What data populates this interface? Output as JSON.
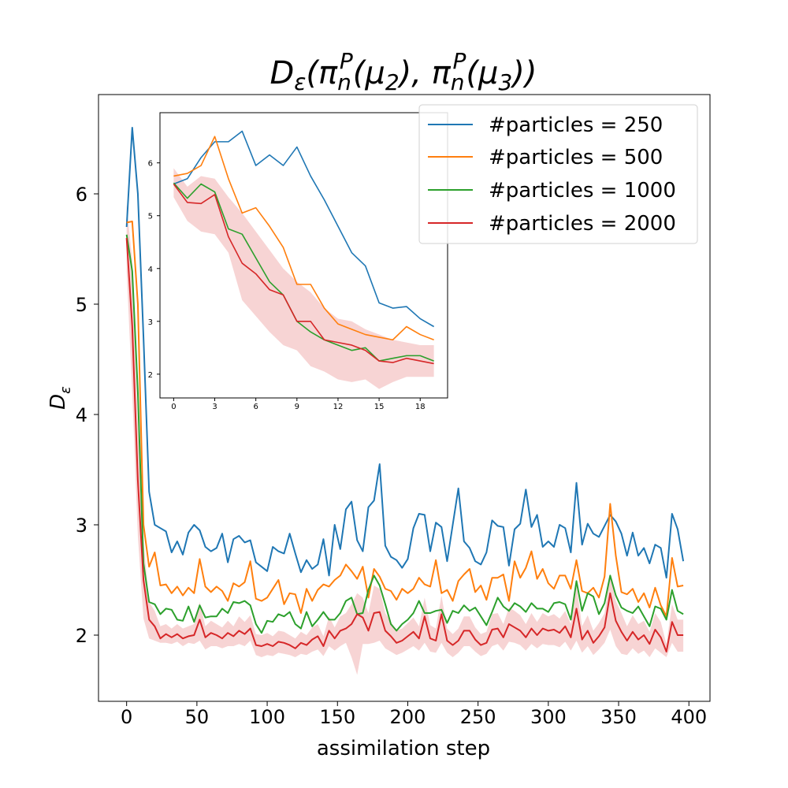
{
  "chart_data": [
    {
      "type": "line",
      "title": "D_ε(π_n^P(μ_2), π_n^P(μ_3))",
      "xlabel": "assimilation step",
      "ylabel": "D_ε",
      "xlim": [
        -20,
        415
      ],
      "ylim": [
        1.4,
        6.9
      ],
      "xticks": [
        0,
        50,
        100,
        150,
        200,
        250,
        300,
        350,
        400
      ],
      "yticks": [
        2,
        3,
        4,
        5,
        6
      ],
      "legend_position": "upper-right",
      "grid": false,
      "x": [
        0,
        4,
        8,
        12,
        16,
        20,
        24,
        28,
        32,
        36,
        40,
        44,
        48,
        52,
        56,
        60,
        64,
        68,
        72,
        76,
        80,
        84,
        88,
        92,
        96,
        100,
        104,
        108,
        112,
        116,
        120,
        124,
        128,
        132,
        136,
        140,
        144,
        148,
        152,
        156,
        160,
        164,
        168,
        172,
        176,
        180,
        184,
        188,
        192,
        196,
        200,
        204,
        208,
        212,
        216,
        220,
        224,
        228,
        232,
        236,
        240,
        244,
        248,
        252,
        256,
        260,
        264,
        268,
        272,
        276,
        280,
        284,
        288,
        292,
        296,
        300,
        304,
        308,
        312,
        316,
        320,
        324,
        328,
        332,
        336,
        340,
        344,
        348,
        352,
        356,
        360,
        364,
        368,
        372,
        376,
        380,
        384,
        388,
        392,
        396
      ],
      "series": [
        {
          "name": "#particles = 250",
          "color": "#1f77b4",
          "values": [
            5.7,
            6.6,
            6.0,
            4.7,
            3.3,
            3.0,
            2.97,
            2.94,
            2.75,
            2.85,
            2.73,
            2.93,
            3.0,
            2.95,
            2.8,
            2.76,
            2.79,
            2.92,
            2.66,
            2.87,
            2.9,
            2.84,
            2.86,
            2.66,
            2.62,
            2.58,
            2.8,
            2.76,
            2.74,
            2.92,
            2.74,
            2.57,
            2.68,
            2.6,
            2.64,
            2.87,
            2.54,
            3.0,
            2.78,
            3.14,
            3.21,
            2.86,
            2.76,
            3.16,
            3.22,
            3.55,
            2.81,
            2.71,
            2.68,
            2.61,
            2.69,
            2.97,
            3.1,
            3.09,
            2.76,
            3.02,
            2.98,
            2.67,
            3.0,
            3.33,
            2.85,
            2.79,
            2.67,
            2.64,
            2.75,
            3.04,
            2.99,
            2.98,
            2.63,
            2.96,
            3.01,
            3.32,
            2.98,
            3.09,
            2.8,
            2.85,
            2.8,
            3.0,
            2.97,
            2.75,
            3.38,
            2.82,
            3.01,
            2.92,
            2.89,
            2.99,
            3.09,
            3.03,
            2.92,
            2.72,
            2.93,
            2.72,
            2.79,
            2.65,
            2.82,
            2.79,
            2.52,
            3.1,
            2.96,
            2.67
          ]
        },
        {
          "name": "#particles = 500",
          "color": "#ff7f0e",
          "values": [
            5.74,
            5.75,
            5.0,
            3.0,
            2.62,
            2.75,
            2.45,
            2.46,
            2.38,
            2.44,
            2.36,
            2.43,
            2.38,
            2.69,
            2.44,
            2.39,
            2.44,
            2.4,
            2.31,
            2.47,
            2.44,
            2.48,
            2.67,
            2.33,
            2.31,
            2.34,
            2.42,
            2.5,
            2.28,
            2.38,
            2.37,
            2.2,
            2.42,
            2.31,
            2.41,
            2.46,
            2.44,
            2.5,
            2.54,
            2.64,
            2.58,
            2.51,
            2.62,
            2.34,
            2.6,
            2.53,
            2.42,
            2.4,
            2.32,
            2.42,
            2.38,
            2.42,
            2.52,
            2.46,
            2.44,
            2.68,
            2.38,
            2.41,
            2.31,
            2.49,
            2.55,
            2.6,
            2.39,
            2.45,
            2.32,
            2.52,
            2.52,
            2.55,
            2.31,
            2.67,
            2.52,
            2.61,
            2.76,
            2.51,
            2.6,
            2.47,
            2.42,
            2.54,
            2.54,
            2.42,
            2.68,
            2.4,
            2.38,
            2.43,
            2.34,
            2.53,
            3.19,
            2.72,
            2.39,
            2.37,
            2.42,
            2.3,
            2.38,
            2.25,
            2.43,
            2.27,
            2.17,
            2.7,
            2.44,
            2.45
          ]
        },
        {
          "name": "#particles = 1000",
          "color": "#2ca02c",
          "values": [
            5.63,
            5.3,
            4.2,
            2.65,
            2.3,
            2.28,
            2.19,
            2.24,
            2.23,
            2.14,
            2.13,
            2.26,
            2.12,
            2.27,
            2.16,
            2.17,
            2.17,
            2.24,
            2.2,
            2.3,
            2.29,
            2.31,
            2.27,
            2.1,
            2.02,
            2.13,
            2.12,
            2.19,
            2.17,
            2.21,
            2.1,
            2.06,
            2.21,
            2.08,
            2.14,
            2.21,
            2.14,
            2.14,
            2.2,
            2.31,
            2.34,
            2.19,
            2.2,
            2.41,
            2.54,
            2.45,
            2.28,
            2.1,
            2.04,
            2.1,
            2.14,
            2.2,
            2.31,
            2.2,
            2.2,
            2.22,
            2.23,
            2.11,
            2.22,
            2.2,
            2.27,
            2.22,
            2.25,
            2.17,
            2.09,
            2.21,
            2.34,
            2.26,
            2.22,
            2.29,
            2.26,
            2.21,
            2.29,
            2.24,
            2.24,
            2.21,
            2.29,
            2.3,
            2.28,
            2.14,
            2.49,
            2.22,
            2.38,
            2.35,
            2.19,
            2.29,
            2.54,
            2.36,
            2.25,
            2.22,
            2.2,
            2.26,
            2.17,
            2.08,
            2.26,
            2.24,
            2.14,
            2.41,
            2.22,
            2.19
          ]
        },
        {
          "name": "#particles = 2000",
          "color": "#d62728",
          "values": [
            5.6,
            4.8,
            3.4,
            2.5,
            2.14,
            2.08,
            1.97,
            2.01,
            1.98,
            2.01,
            1.97,
            1.99,
            2.0,
            2.14,
            1.98,
            2.02,
            2.0,
            1.97,
            2.02,
            1.99,
            2.04,
            2.01,
            2.06,
            1.91,
            1.9,
            1.92,
            1.9,
            1.94,
            1.93,
            1.91,
            1.88,
            1.93,
            1.91,
            1.96,
            1.99,
            1.9,
            2.04,
            1.97,
            2.04,
            2.06,
            2.1,
            2.19,
            2.16,
            2.04,
            2.2,
            2.21,
            2.04,
            1.99,
            1.93,
            1.95,
            1.99,
            2.03,
            1.97,
            2.17,
            1.97,
            1.95,
            2.19,
            1.95,
            1.91,
            1.95,
            2.04,
            2.04,
            1.96,
            1.91,
            1.93,
            2.05,
            2.06,
            1.98,
            2.1,
            2.07,
            2.04,
            1.98,
            2.06,
            2.0,
            2.06,
            2.04,
            2.05,
            2.02,
            2.08,
            1.98,
            2.24,
            1.96,
            2.04,
            1.93,
            1.99,
            2.07,
            2.38,
            2.13,
            2.03,
            1.95,
            2.03,
            1.96,
            2.0,
            1.92,
            2.05,
            1.98,
            1.85,
            2.12,
            2.0,
            2.0
          ]
        }
      ],
      "band": {
        "color": "#d62728",
        "lower": [
          5.3,
          4.2,
          2.9,
          2.15,
          1.97,
          1.95,
          1.93,
          1.93,
          1.92,
          1.94,
          1.9,
          1.93,
          1.92,
          1.95,
          1.87,
          1.9,
          1.9,
          1.88,
          1.9,
          1.9,
          1.92,
          1.9,
          1.95,
          1.82,
          1.8,
          1.82,
          1.81,
          1.84,
          1.83,
          1.82,
          1.8,
          1.83,
          1.82,
          1.85,
          1.87,
          1.81,
          1.9,
          1.86,
          1.9,
          1.93,
          1.8,
          1.64,
          1.92,
          1.92,
          1.93,
          1.95,
          1.88,
          1.85,
          1.82,
          1.84,
          1.87,
          1.9,
          1.86,
          1.93,
          1.85,
          1.84,
          1.93,
          1.84,
          1.8,
          1.84,
          1.9,
          1.9,
          1.85,
          1.81,
          1.83,
          1.9,
          1.92,
          1.86,
          1.94,
          1.93,
          1.91,
          1.86,
          1.92,
          1.88,
          1.92,
          1.91,
          1.91,
          1.89,
          1.94,
          1.86,
          1.95,
          1.84,
          1.9,
          1.82,
          1.87,
          1.93,
          2.05,
          1.9,
          1.83,
          1.82,
          1.88,
          1.83,
          1.86,
          1.8,
          1.88,
          1.84,
          1.8,
          1.93,
          1.85,
          1.85
        ],
        "upper": [
          5.9,
          5.4,
          3.9,
          2.85,
          2.3,
          2.22,
          2.08,
          2.1,
          2.06,
          2.1,
          2.06,
          2.08,
          2.1,
          2.3,
          2.08,
          2.13,
          2.1,
          2.07,
          2.13,
          2.08,
          2.17,
          2.12,
          2.18,
          2.01,
          2.0,
          2.02,
          1.99,
          2.04,
          2.03,
          2.0,
          1.97,
          2.03,
          2.0,
          2.07,
          2.1,
          1.99,
          2.17,
          2.07,
          2.17,
          2.2,
          2.28,
          2.38,
          2.34,
          2.2,
          2.45,
          2.42,
          2.2,
          2.12,
          2.04,
          2.06,
          2.11,
          2.16,
          2.08,
          2.34,
          2.09,
          2.06,
          2.36,
          2.06,
          2.01,
          2.06,
          2.17,
          2.17,
          2.07,
          2.01,
          2.03,
          2.19,
          2.2,
          2.1,
          2.25,
          2.22,
          2.18,
          2.1,
          2.2,
          2.12,
          2.2,
          2.17,
          2.19,
          2.15,
          2.22,
          2.1,
          2.45,
          2.08,
          2.18,
          2.04,
          2.11,
          2.2,
          2.55,
          2.31,
          2.2,
          2.08,
          2.18,
          2.1,
          2.13,
          2.03,
          2.2,
          2.12,
          1.92,
          2.28,
          2.14,
          2.14
        ]
      }
    },
    {
      "type": "line",
      "inset": true,
      "xlim": [
        -1,
        20
      ],
      "ylim": [
        1.55,
        6.95
      ],
      "xticks": [
        0,
        3,
        6,
        9,
        12,
        15,
        18
      ],
      "yticks": [
        2,
        3,
        4,
        5,
        6
      ],
      "x": [
        0,
        1,
        2,
        3,
        4,
        5,
        6,
        7,
        8,
        9,
        10,
        11,
        12,
        13,
        14,
        15,
        16,
        17,
        18,
        19
      ],
      "series": [
        {
          "name": "#particles = 250",
          "color": "#1f77b4",
          "values": [
            5.6,
            5.7,
            6.1,
            6.4,
            6.4,
            6.6,
            5.95,
            6.15,
            5.95,
            6.3,
            5.75,
            5.3,
            4.8,
            4.3,
            4.05,
            3.35,
            3.25,
            3.28,
            3.05,
            2.9
          ]
        },
        {
          "name": "#particles = 500",
          "color": "#ff7f0e",
          "values": [
            5.75,
            5.8,
            5.95,
            6.5,
            5.7,
            5.05,
            5.15,
            4.8,
            4.4,
            3.7,
            3.7,
            3.25,
            2.95,
            2.85,
            2.75,
            2.7,
            2.65,
            2.9,
            2.75,
            2.65
          ]
        },
        {
          "name": "#particles = 1000",
          "color": "#2ca02c",
          "values": [
            5.62,
            5.33,
            5.6,
            5.45,
            4.75,
            4.65,
            4.2,
            3.75,
            3.5,
            3.0,
            2.8,
            2.65,
            2.55,
            2.45,
            2.5,
            2.25,
            2.3,
            2.35,
            2.35,
            2.25
          ]
        },
        {
          "name": "#particles = 2000",
          "color": "#d62728",
          "values": [
            5.6,
            5.25,
            5.23,
            5.4,
            4.6,
            4.1,
            3.9,
            3.6,
            3.5,
            3.0,
            3.0,
            2.65,
            2.6,
            2.55,
            2.45,
            2.25,
            2.22,
            2.3,
            2.25,
            2.2
          ]
        }
      ],
      "band": {
        "color": "#d62728",
        "lower": [
          5.35,
          4.9,
          4.7,
          4.65,
          4.3,
          3.4,
          3.1,
          2.8,
          2.55,
          2.45,
          2.15,
          2.05,
          1.9,
          1.85,
          1.9,
          1.72,
          1.85,
          1.95,
          1.95,
          1.95
        ],
        "upper": [
          5.9,
          5.55,
          5.75,
          5.7,
          5.35,
          5.05,
          4.7,
          4.35,
          4.0,
          3.75,
          3.55,
          3.25,
          3.05,
          3.0,
          2.85,
          2.75,
          2.65,
          2.6,
          2.55,
          2.55
        ]
      }
    }
  ],
  "legend": {
    "entries": [
      "#particles = 250",
      "#particles = 500",
      "#particles = 1000",
      "#particles = 2000"
    ],
    "colors": [
      "#1f77b4",
      "#ff7f0e",
      "#2ca02c",
      "#d62728"
    ]
  }
}
